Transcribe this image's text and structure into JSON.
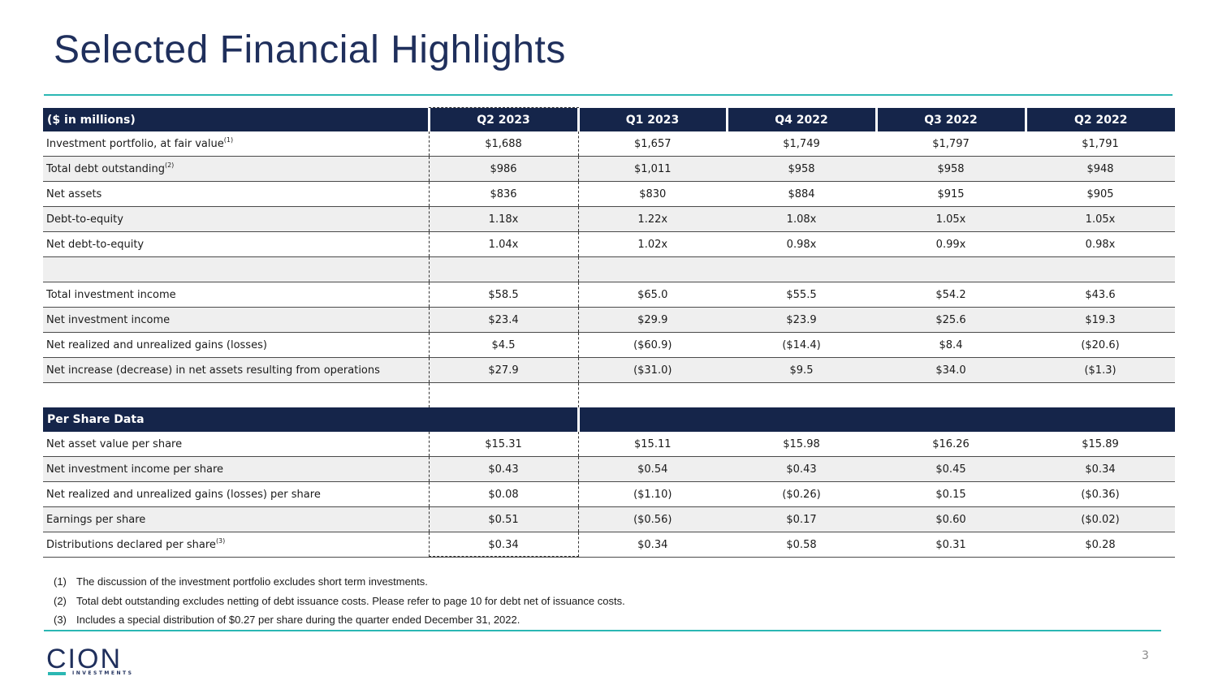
{
  "title": "Selected Financial Highlights",
  "table": {
    "header": [
      "($ in millions)",
      "Q2 2023",
      "Q1 2023",
      "Q4 2022",
      "Q3 2022",
      "Q2 2022"
    ],
    "rows": [
      {
        "label": "Investment portfolio, at fair value",
        "sup": "(1)",
        "values": [
          "$1,688",
          "$1,657",
          "$1,749",
          "$1,797",
          "$1,791"
        ]
      },
      {
        "label": "Total debt outstanding",
        "sup": "(2)",
        "values": [
          "$986",
          "$1,011",
          "$958",
          "$958",
          "$948"
        ]
      },
      {
        "label": "Net assets",
        "values": [
          "$836",
          "$830",
          "$884",
          "$915",
          "$905"
        ]
      },
      {
        "label": "Debt-to-equity",
        "values": [
          "1.18x",
          "1.22x",
          "1.08x",
          "1.05x",
          "1.05x"
        ]
      },
      {
        "label": "Net debt-to-equity",
        "values": [
          "1.04x",
          "1.02x",
          "0.98x",
          "0.99x",
          "0.98x"
        ]
      },
      {
        "label": "Total investment income",
        "values": [
          "$58.5",
          "$65.0",
          "$55.5",
          "$54.2",
          "$43.6"
        ]
      },
      {
        "label": "Net investment income",
        "values": [
          "$23.4",
          "$29.9",
          "$23.9",
          "$25.6",
          "$19.3"
        ]
      },
      {
        "label": "Net realized and unrealized gains (losses)",
        "values": [
          "$4.5",
          "($60.9)",
          "($14.4)",
          "$8.4",
          "($20.6)"
        ]
      },
      {
        "label": "Net increase (decrease) in net assets resulting from operations",
        "values": [
          "$27.9",
          "($31.0)",
          "$9.5",
          "$34.0",
          "($1.3)"
        ]
      }
    ],
    "per_share_title": "Per Share Data",
    "per_share_rows": [
      {
        "label": "Net asset value per share",
        "values": [
          "$15.31",
          "$15.11",
          "$15.98",
          "$16.26",
          "$15.89"
        ]
      },
      {
        "label": "Net investment income per share",
        "values": [
          "$0.43",
          "$0.54",
          "$0.43",
          "$0.45",
          "$0.34"
        ]
      },
      {
        "label": "Net realized and unrealized gains (losses) per share",
        "values": [
          "$0.08",
          "($1.10)",
          "($0.26)",
          "$0.15",
          "($0.36)"
        ]
      },
      {
        "label": "Earnings per share",
        "values": [
          "$0.51",
          "($0.56)",
          "$0.17",
          "$0.60",
          "($0.02)"
        ]
      },
      {
        "label": "Distributions declared per share",
        "sup": "(3)",
        "values": [
          "$0.34",
          "$0.34",
          "$0.58",
          "$0.31",
          "$0.28"
        ]
      }
    ]
  },
  "footnotes": [
    {
      "num": "(1)",
      "text": "The discussion of the investment portfolio excludes short term investments."
    },
    {
      "num": "(2)",
      "text": "Total debt outstanding excludes netting of debt issuance costs. Please refer to page 10 for debt net of issuance costs."
    },
    {
      "num": "(3)",
      "text": "Includes a special distribution of $0.27 per share during the quarter ended December 31, 2022."
    }
  ],
  "logo": {
    "name": "CION",
    "sub": "INVESTMENTS"
  },
  "page_number": "3",
  "colors": {
    "navy": "#15254a",
    "teal": "#2bb7b3",
    "title": "#1f2f5c"
  }
}
